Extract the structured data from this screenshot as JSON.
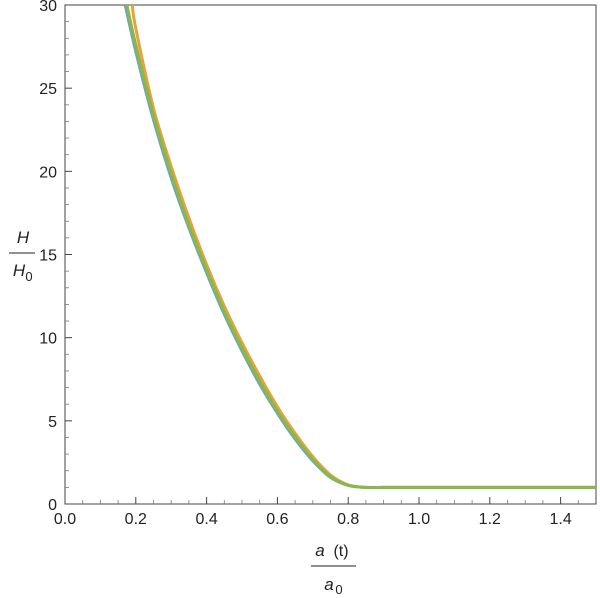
{
  "chart_data": {
    "type": "line",
    "title": "",
    "xlabel": {
      "numerator": "a",
      "numerator_arg": "(t)",
      "denominator": "a",
      "denominator_sub": "0"
    },
    "ylabel": {
      "numerator": "H",
      "denominator": "H",
      "denominator_sub": "0"
    },
    "xlim": [
      0.0,
      1.5
    ],
    "ylim": [
      0,
      30
    ],
    "xticks": [
      "0.0",
      "0.2",
      "0.4",
      "0.6",
      "0.8",
      "1.0",
      "1.2",
      "1.4"
    ],
    "yticks": [
      "0",
      "5",
      "10",
      "15",
      "20",
      "25",
      "30"
    ],
    "grid": false,
    "legend": "none",
    "series": [
      {
        "color": "#e8a33a",
        "x": [
          0.19,
          0.2,
          0.25,
          0.3,
          0.35,
          0.4,
          0.45,
          0.5,
          0.55,
          0.6,
          0.65,
          0.7,
          0.75,
          0.8,
          0.85,
          0.9,
          0.95,
          1.0,
          1.1,
          1.2,
          1.3,
          1.4,
          1.5
        ],
        "y": [
          30,
          28.6,
          23.8,
          20.3,
          17.2,
          14.4,
          11.9,
          9.7,
          7.7,
          5.85,
          4.25,
          2.85,
          1.75,
          1.15,
          1.0,
          1.0,
          1.0,
          1.0,
          1.0,
          1.0,
          1.0,
          1.0,
          1.0
        ]
      },
      {
        "color": "#6fa6b6",
        "x": [
          0.17,
          0.2,
          0.25,
          0.3,
          0.35,
          0.4,
          0.45,
          0.5,
          0.55,
          0.6,
          0.65,
          0.7,
          0.75,
          0.8,
          0.85,
          0.9,
          0.95,
          1.0,
          1.1,
          1.2,
          1.3,
          1.4,
          1.5
        ],
        "y": [
          30,
          27.2,
          23.1,
          19.6,
          16.6,
          13.9,
          11.4,
          9.2,
          7.2,
          5.45,
          3.9,
          2.6,
          1.6,
          1.12,
          1.0,
          1.0,
          1.0,
          1.0,
          1.0,
          1.0,
          1.0,
          1.0,
          1.0
        ]
      },
      {
        "color": "#8cb84a",
        "x": [
          0.175,
          0.2,
          0.25,
          0.3,
          0.35,
          0.4,
          0.45,
          0.5,
          0.55,
          0.6,
          0.65,
          0.7,
          0.75,
          0.8,
          0.85,
          0.9,
          0.95,
          1.0,
          1.1,
          1.2,
          1.3,
          1.4,
          1.5
        ],
        "y": [
          30,
          27.6,
          23.4,
          19.9,
          16.8,
          14.1,
          11.6,
          9.4,
          7.4,
          5.6,
          4.05,
          2.7,
          1.65,
          1.13,
          1.0,
          1.0,
          1.0,
          1.0,
          1.0,
          1.0,
          1.0,
          1.0,
          1.0
        ]
      }
    ]
  }
}
